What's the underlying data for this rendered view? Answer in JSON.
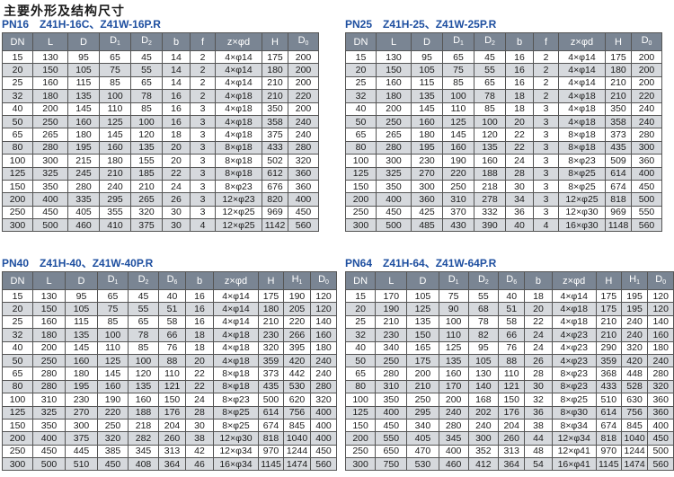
{
  "page_title": "主要外形及结构尺寸",
  "tables": [
    {
      "pn": "PN16",
      "models": "Z41H-16C、Z41W-16P.R",
      "headers": [
        {
          "t": "DN",
          "s": ""
        },
        {
          "t": "L",
          "s": ""
        },
        {
          "t": "D",
          "s": ""
        },
        {
          "t": "D",
          "s": "1"
        },
        {
          "t": "D",
          "s": "2"
        },
        {
          "t": "b",
          "s": ""
        },
        {
          "t": "f",
          "s": ""
        },
        {
          "t": "z×φd",
          "s": ""
        },
        {
          "t": "H",
          "s": ""
        },
        {
          "t": "D",
          "s": "0"
        }
      ],
      "rows": [
        [
          "15",
          "130",
          "95",
          "65",
          "45",
          "14",
          "2",
          "4×φ14",
          "175",
          "200"
        ],
        [
          "20",
          "150",
          "105",
          "75",
          "55",
          "14",
          "2",
          "4×φ14",
          "180",
          "200"
        ],
        [
          "25",
          "160",
          "115",
          "85",
          "65",
          "14",
          "2",
          "4×φ14",
          "210",
          "200"
        ],
        [
          "32",
          "180",
          "135",
          "100",
          "78",
          "16",
          "2",
          "4×φ18",
          "210",
          "220"
        ],
        [
          "40",
          "200",
          "145",
          "110",
          "85",
          "16",
          "3",
          "4×φ18",
          "350",
          "200"
        ],
        [
          "50",
          "250",
          "160",
          "125",
          "100",
          "16",
          "3",
          "4×φ18",
          "358",
          "240"
        ],
        [
          "65",
          "265",
          "180",
          "145",
          "120",
          "18",
          "3",
          "4×φ18",
          "375",
          "240"
        ],
        [
          "80",
          "280",
          "195",
          "160",
          "135",
          "20",
          "3",
          "8×φ18",
          "433",
          "280"
        ],
        [
          "100",
          "300",
          "215",
          "180",
          "155",
          "20",
          "3",
          "8×φ18",
          "502",
          "320"
        ],
        [
          "125",
          "325",
          "245",
          "210",
          "185",
          "22",
          "3",
          "8×φ18",
          "612",
          "360"
        ],
        [
          "150",
          "350",
          "280",
          "240",
          "210",
          "24",
          "3",
          "8×φ23",
          "676",
          "360"
        ],
        [
          "200",
          "400",
          "335",
          "295",
          "265",
          "26",
          "3",
          "12×φ23",
          "820",
          "400"
        ],
        [
          "250",
          "450",
          "405",
          "355",
          "320",
          "30",
          "3",
          "12×φ25",
          "969",
          "450"
        ],
        [
          "300",
          "500",
          "460",
          "410",
          "375",
          "30",
          "4",
          "12×φ25",
          "1142",
          "560"
        ]
      ]
    },
    {
      "pn": "PN25",
      "models": "Z41H-25、Z41W-25P.R",
      "headers": [
        {
          "t": "DN",
          "s": ""
        },
        {
          "t": "L",
          "s": ""
        },
        {
          "t": "D",
          "s": ""
        },
        {
          "t": "D",
          "s": "1"
        },
        {
          "t": "D",
          "s": "2"
        },
        {
          "t": "b",
          "s": ""
        },
        {
          "t": "f",
          "s": ""
        },
        {
          "t": "z×φd",
          "s": ""
        },
        {
          "t": "H",
          "s": ""
        },
        {
          "t": "D",
          "s": "0"
        }
      ],
      "rows": [
        [
          "15",
          "130",
          "95",
          "65",
          "45",
          "16",
          "2",
          "4×φ14",
          "175",
          "200"
        ],
        [
          "20",
          "150",
          "105",
          "75",
          "55",
          "16",
          "2",
          "4×φ14",
          "180",
          "200"
        ],
        [
          "25",
          "160",
          "115",
          "85",
          "65",
          "16",
          "2",
          "4×φ14",
          "210",
          "200"
        ],
        [
          "32",
          "180",
          "135",
          "100",
          "78",
          "18",
          "2",
          "4×φ18",
          "210",
          "220"
        ],
        [
          "40",
          "200",
          "145",
          "110",
          "85",
          "18",
          "3",
          "4×φ18",
          "350",
          "240"
        ],
        [
          "50",
          "250",
          "160",
          "125",
          "100",
          "20",
          "3",
          "4×φ18",
          "358",
          "240"
        ],
        [
          "65",
          "265",
          "180",
          "145",
          "120",
          "22",
          "3",
          "8×φ18",
          "373",
          "280"
        ],
        [
          "80",
          "280",
          "195",
          "160",
          "135",
          "22",
          "3",
          "8×φ18",
          "435",
          "300"
        ],
        [
          "100",
          "300",
          "230",
          "190",
          "160",
          "24",
          "3",
          "8×φ23",
          "509",
          "360"
        ],
        [
          "125",
          "325",
          "270",
          "220",
          "188",
          "28",
          "3",
          "8×φ25",
          "614",
          "400"
        ],
        [
          "150",
          "350",
          "300",
          "250",
          "218",
          "30",
          "3",
          "8×φ25",
          "674",
          "450"
        ],
        [
          "200",
          "400",
          "360",
          "310",
          "278",
          "34",
          "3",
          "12×φ25",
          "818",
          "500"
        ],
        [
          "250",
          "450",
          "425",
          "370",
          "332",
          "36",
          "3",
          "12×φ30",
          "969",
          "550"
        ],
        [
          "300",
          "500",
          "485",
          "430",
          "390",
          "40",
          "4",
          "16×φ30",
          "1148",
          "560"
        ]
      ]
    },
    {
      "pn": "PN40",
      "models": "Z41H-40、Z41W-40P.R",
      "headers": [
        {
          "t": "DN",
          "s": ""
        },
        {
          "t": "L",
          "s": ""
        },
        {
          "t": "D",
          "s": ""
        },
        {
          "t": "D",
          "s": "1"
        },
        {
          "t": "D",
          "s": "2"
        },
        {
          "t": "D",
          "s": "6"
        },
        {
          "t": "b",
          "s": ""
        },
        {
          "t": "z×φd",
          "s": ""
        },
        {
          "t": "H",
          "s": ""
        },
        {
          "t": "H",
          "s": "1"
        },
        {
          "t": "D",
          "s": "0"
        }
      ],
      "rows": [
        [
          "15",
          "130",
          "95",
          "65",
          "45",
          "40",
          "16",
          "4×φ14",
          "175",
          "190",
          "120"
        ],
        [
          "20",
          "150",
          "105",
          "75",
          "55",
          "51",
          "16",
          "4×φ14",
          "180",
          "205",
          "120"
        ],
        [
          "25",
          "160",
          "115",
          "85",
          "65",
          "58",
          "16",
          "4×φ14",
          "210",
          "220",
          "140"
        ],
        [
          "32",
          "180",
          "135",
          "100",
          "78",
          "66",
          "18",
          "4×φ18",
          "230",
          "266",
          "160"
        ],
        [
          "40",
          "200",
          "145",
          "110",
          "85",
          "76",
          "18",
          "4×φ18",
          "320",
          "395",
          "180"
        ],
        [
          "50",
          "250",
          "160",
          "125",
          "100",
          "88",
          "20",
          "4×φ18",
          "359",
          "420",
          "240"
        ],
        [
          "65",
          "280",
          "180",
          "145",
          "120",
          "110",
          "22",
          "8×φ18",
          "373",
          "442",
          "240"
        ],
        [
          "80",
          "280",
          "195",
          "160",
          "135",
          "121",
          "22",
          "8×φ18",
          "435",
          "530",
          "280"
        ],
        [
          "100",
          "310",
          "230",
          "190",
          "160",
          "150",
          "24",
          "8×φ23",
          "500",
          "620",
          "320"
        ],
        [
          "125",
          "325",
          "270",
          "220",
          "188",
          "176",
          "28",
          "8×φ25",
          "614",
          "756",
          "400"
        ],
        [
          "150",
          "350",
          "300",
          "250",
          "218",
          "204",
          "30",
          "8×φ25",
          "674",
          "845",
          "400"
        ],
        [
          "200",
          "400",
          "375",
          "320",
          "282",
          "260",
          "38",
          "12×φ30",
          "818",
          "1040",
          "400"
        ],
        [
          "250",
          "450",
          "445",
          "385",
          "345",
          "313",
          "42",
          "12×φ34",
          "970",
          "1244",
          "450"
        ],
        [
          "300",
          "500",
          "510",
          "450",
          "408",
          "364",
          "46",
          "16×φ34",
          "1145",
          "1474",
          "560"
        ]
      ]
    },
    {
      "pn": "PN64",
      "models": "Z41H-64、Z41W-64P.R",
      "headers": [
        {
          "t": "DN",
          "s": ""
        },
        {
          "t": "L",
          "s": ""
        },
        {
          "t": "D",
          "s": ""
        },
        {
          "t": "D",
          "s": "1"
        },
        {
          "t": "D",
          "s": "2"
        },
        {
          "t": "D",
          "s": "6"
        },
        {
          "t": "b",
          "s": ""
        },
        {
          "t": "z×φd",
          "s": ""
        },
        {
          "t": "H",
          "s": ""
        },
        {
          "t": "H",
          "s": "1"
        },
        {
          "t": "D",
          "s": "0"
        }
      ],
      "rows": [
        [
          "15",
          "170",
          "105",
          "75",
          "55",
          "40",
          "18",
          "4×φ14",
          "175",
          "195",
          "120"
        ],
        [
          "20",
          "190",
          "125",
          "90",
          "68",
          "51",
          "20",
          "4×φ18",
          "175",
          "195",
          "120"
        ],
        [
          "25",
          "210",
          "135",
          "100",
          "78",
          "58",
          "22",
          "4×φ18",
          "210",
          "240",
          "140"
        ],
        [
          "32",
          "230",
          "150",
          "110",
          "82",
          "66",
          "24",
          "4×φ23",
          "210",
          "240",
          "160"
        ],
        [
          "40",
          "340",
          "165",
          "125",
          "95",
          "76",
          "24",
          "4×φ23",
          "290",
          "320",
          "180"
        ],
        [
          "50",
          "250",
          "175",
          "135",
          "105",
          "88",
          "26",
          "4×φ23",
          "359",
          "420",
          "240"
        ],
        [
          "65",
          "280",
          "200",
          "160",
          "130",
          "110",
          "28",
          "8×φ23",
          "368",
          "448",
          "280"
        ],
        [
          "80",
          "310",
          "210",
          "170",
          "140",
          "121",
          "30",
          "8×φ23",
          "433",
          "528",
          "320"
        ],
        [
          "100",
          "350",
          "250",
          "200",
          "168",
          "150",
          "32",
          "8×φ25",
          "510",
          "630",
          "360"
        ],
        [
          "125",
          "400",
          "295",
          "240",
          "202",
          "176",
          "36",
          "8×φ30",
          "614",
          "756",
          "360"
        ],
        [
          "150",
          "450",
          "340",
          "280",
          "240",
          "204",
          "38",
          "8×φ34",
          "674",
          "845",
          "400"
        ],
        [
          "200",
          "550",
          "405",
          "345",
          "300",
          "260",
          "44",
          "12×φ34",
          "818",
          "1040",
          "450"
        ],
        [
          "250",
          "650",
          "470",
          "400",
          "352",
          "313",
          "48",
          "12×φ41",
          "970",
          "1244",
          "500"
        ],
        [
          "300",
          "750",
          "530",
          "460",
          "412",
          "364",
          "54",
          "16×φ41",
          "1145",
          "1474",
          "560"
        ]
      ]
    }
  ]
}
